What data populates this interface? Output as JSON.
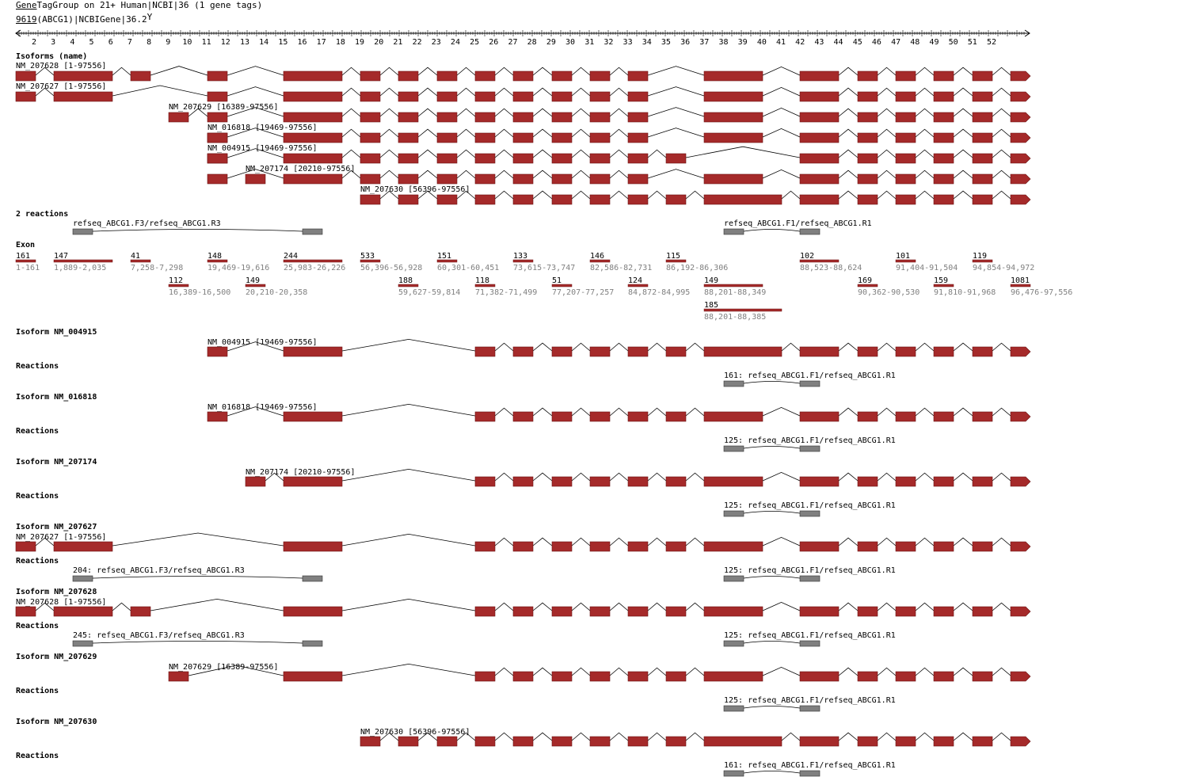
{
  "header": {
    "title_link": "Gene",
    "title_rest": "TagGroup on 21+ Human|NCBI|36 (1 gene tags)",
    "gene_link": "9619",
    "gene_rest": "(ABCG1)|NCBIGene|36.2",
    "gene_suffix": "Y"
  },
  "ruler": {
    "labels": [
      "2",
      "3",
      "4",
      "5",
      "6",
      "7",
      "8",
      "9",
      "10",
      "11",
      "12",
      "13",
      "14",
      "15",
      "16",
      "17",
      "18",
      "19",
      "20",
      "21",
      "22",
      "23",
      "24",
      "25",
      "26",
      "27",
      "28",
      "29",
      "30",
      "31",
      "32",
      "33",
      "34",
      "35",
      "36",
      "37",
      "38",
      "39",
      "40",
      "41",
      "42",
      "43",
      "44",
      "45",
      "46",
      "47",
      "48",
      "49",
      "50",
      "51",
      "52"
    ]
  },
  "colors": {
    "exon": "#a52a2a",
    "reaction": "#808080",
    "intron": "#000000",
    "exon_label": "#808080"
  },
  "isoforms_section": {
    "title": "Isoforms (name)",
    "tracks": [
      {
        "label": "NM_207628 [1-97556]",
        "exons": [
          1,
          2,
          3,
          5,
          7,
          8,
          9,
          10,
          11,
          12,
          13,
          14,
          15,
          17,
          19,
          20,
          21,
          22,
          23,
          24
        ]
      },
      {
        "label": "NM_207627 [1-97556]",
        "exons": [
          1,
          2,
          5,
          7,
          8,
          9,
          10,
          11,
          12,
          13,
          14,
          15,
          17,
          19,
          20,
          21,
          22,
          23,
          24
        ]
      },
      {
        "label": "NM_207629 [16389-97556]",
        "exons": [
          4,
          5,
          7,
          8,
          9,
          10,
          11,
          12,
          13,
          14,
          15,
          17,
          19,
          20,
          21,
          22,
          23,
          24
        ]
      },
      {
        "label": "NM_016818 [19469-97556]",
        "exons": [
          5,
          5,
          7,
          8,
          9,
          10,
          11,
          12,
          13,
          14,
          15,
          17,
          19,
          20,
          21,
          22,
          23,
          24
        ]
      },
      {
        "label": "NM_004915 [19469-97556]",
        "exons": [
          5,
          5,
          7,
          8,
          9,
          10,
          11,
          12,
          13,
          14,
          15,
          16,
          19,
          20,
          21,
          22,
          23,
          24
        ]
      },
      {
        "label": "NM_207174 [20210-97556]",
        "exons": [
          6,
          5,
          7,
          8,
          9,
          10,
          11,
          12,
          13,
          14,
          15,
          17,
          19,
          20,
          21,
          22,
          23,
          24
        ]
      }
    ]
  },
  "iso_sec_track_extra": {
    "label": "NM_207630 [56396-97556]"
  },
  "reactions_section": {
    "title": "2 reactions",
    "items": [
      {
        "label": "refseq_ABCG1.F3/refseq_ABCG1.R3"
      },
      {
        "label": "refseq_ABCG1.F1/refseq_ABCG1.R1"
      }
    ]
  },
  "exon_section": {
    "title": "Exon",
    "exons": [
      {
        "len": "161",
        "range": "1-161"
      },
      {
        "len": "147",
        "range": "1,889-2,035"
      },
      {
        "len": "41",
        "range": "7,258-7,298"
      },
      {
        "len": "112",
        "range": "16,389-16,500"
      },
      {
        "len": "148",
        "range": "19,469-19,616"
      },
      {
        "len": "149",
        "range": "20,210-20,358"
      },
      {
        "len": "244",
        "range": "25,983-26,226"
      },
      {
        "len": "533",
        "range": "56,396-56,928"
      },
      {
        "len": "188",
        "range": "59,627-59,814"
      },
      {
        "len": "151",
        "range": "60,301-60,451"
      },
      {
        "len": "118",
        "range": "71,382-71,499"
      },
      {
        "len": "133",
        "range": "73,615-73,747"
      },
      {
        "len": "51",
        "range": "77,207-77,257"
      },
      {
        "len": "146",
        "range": "82,586-82,731"
      },
      {
        "len": "124",
        "range": "84,872-84,995"
      },
      {
        "len": "115",
        "range": "86,192-86,306"
      },
      {
        "len": "149",
        "range": "88,201-88,349"
      },
      {
        "len": "185",
        "range": "88,201-88,385"
      },
      {
        "len": "102",
        "range": "88,523-88,624"
      },
      {
        "len": "169",
        "range": "90,362-90,530"
      },
      {
        "len": "101",
        "range": "91,404-91,504"
      },
      {
        "len": "159",
        "range": "91,810-91,968"
      },
      {
        "len": "119",
        "range": "94,854-94,972"
      },
      {
        "len": "1081",
        "range": "96,476-97,556"
      }
    ]
  },
  "isoform_panels": [
    {
      "title": "Isoform NM_004915",
      "track": "NM_004915 [19469-97556]",
      "reactions_title": "Reactions",
      "reactions": [
        {
          "label": "161: refseq_ABCG1.F1/refseq_ABCG1.R1"
        }
      ]
    },
    {
      "title": "Isoform NM_016818",
      "track": "NM_016818 [19469-97556]",
      "reactions_title": "Reactions",
      "reactions": [
        {
          "label": "125: refseq_ABCG1.F1/refseq_ABCG1.R1"
        }
      ]
    },
    {
      "title": "Isoform NM_207174",
      "track": "NM_207174 [20210-97556]",
      "reactions_title": "Reactions",
      "reactions": [
        {
          "label": "125: refseq_ABCG1.F1/refseq_ABCG1.R1"
        }
      ]
    },
    {
      "title": "Isoform NM_207627",
      "track": "NM_207627 [1-97556]",
      "reactions_title": "Reactions",
      "reactions": [
        {
          "label": "204: refseq_ABCG1.F3/refseq_ABCG1.R3"
        },
        {
          "label": "125: refseq_ABCG1.F1/refseq_ABCG1.R1"
        }
      ]
    },
    {
      "title": "Isoform NM_207628",
      "track": "NM_207628 [1-97556]",
      "reactions_title": "Reactions",
      "reactions": [
        {
          "label": "245: refseq_ABCG1.F3/refseq_ABCG1.R3"
        },
        {
          "label": "125: refseq_ABCG1.F1/refseq_ABCG1.R1"
        }
      ]
    },
    {
      "title": "Isoform NM_207629",
      "track": "NM_207629 [16389-97556]",
      "reactions_title": "Reactions",
      "reactions": [
        {
          "label": "125: refseq_ABCG1.F1/refseq_ABCG1.R1"
        }
      ]
    },
    {
      "title": "Isoform NM_207630",
      "track": "NM_207630 [56396-97556]",
      "reactions_title": "Reactions",
      "reactions": [
        {
          "label": "161: refseq_ABCG1.F1/refseq_ABCG1.R1"
        }
      ]
    }
  ]
}
